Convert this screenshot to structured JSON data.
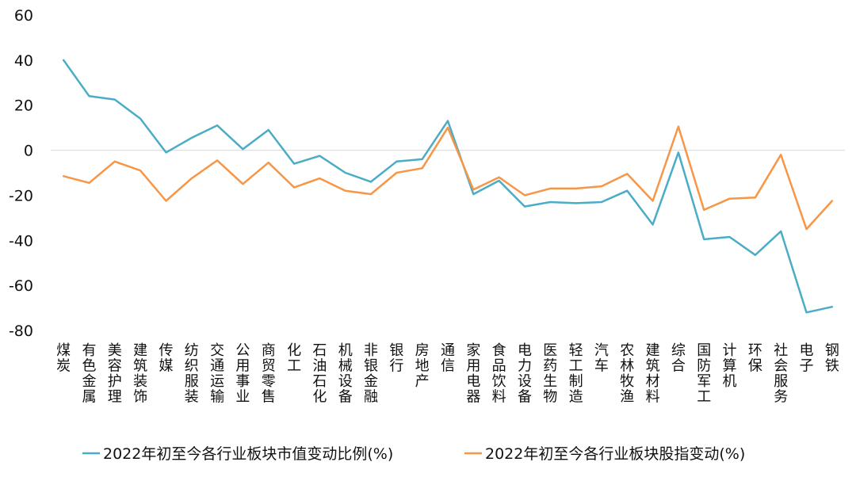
{
  "chart_data": {
    "type": "line",
    "categories": [
      "煤炭",
      "有色金属",
      "美容护理",
      "建筑装饰",
      "传媒",
      "纺织服装",
      "交通运输",
      "公用事业",
      "商贸零售",
      "化工",
      "石油石化",
      "机械设备",
      "非银金融",
      "银行",
      "房地产",
      "通信",
      "家用电器",
      "食品饮料",
      "电力设备",
      "医药生物",
      "轻工制造",
      "汽车",
      "农林牧渔",
      "建筑材料",
      "综合",
      "国防军工",
      "计算机",
      "环保",
      "社会服务",
      "电子",
      "钢铁"
    ],
    "series": [
      {
        "name": "2022年初至今各行业板块市值变动比例(%)",
        "color": "#4bacc6",
        "values": [
          40,
          24,
          22.5,
          14,
          -1,
          5.5,
          11,
          0.5,
          9,
          -6,
          -2.5,
          -10,
          -14,
          -5,
          -4,
          13,
          -19.5,
          -13.5,
          -25,
          -23,
          -23.5,
          -23,
          -18,
          -33,
          -1,
          -39.5,
          -38.5,
          -46.5,
          -36,
          -72,
          -69.5
        ]
      },
      {
        "name": "2022年初至今各行业板块股指变动(%)",
        "color": "#f79646",
        "values": [
          -11.5,
          -14.5,
          -5,
          -9,
          -22.5,
          -12.5,
          -4.5,
          -15,
          -5.5,
          -16.5,
          -12.5,
          -18,
          -19.5,
          -10,
          -8,
          10,
          -17.5,
          -12,
          -20,
          -17,
          -17,
          -16,
          -10.5,
          -22.5,
          10.5,
          -26.5,
          -21.5,
          -21,
          -2,
          -35,
          -22.5
        ]
      }
    ],
    "ylim": [
      -80,
      60
    ],
    "yticks": [
      "60",
      "40",
      "20",
      "0",
      "-20",
      "-40",
      "-60",
      "-80"
    ],
    "ytick_values": [
      60,
      40,
      20,
      0,
      -20,
      -40,
      -60,
      -80
    ],
    "grid": false,
    "zero_line_color": "#d9d9d9",
    "legend_position": "bottom"
  }
}
